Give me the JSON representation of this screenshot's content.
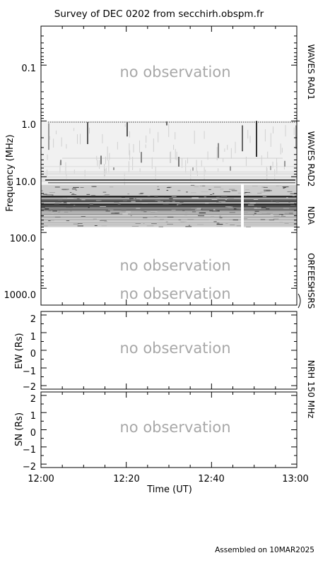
{
  "chart_data": {
    "type": "heatmap",
    "title": "Survey of  DEC 0202 from secchirh.obspm.fr",
    "xlabel": "Time (UT)",
    "x_ticks": [
      "12:00",
      "12:20",
      "12:40",
      "13:00"
    ],
    "no_observation_label": "no observation",
    "footer": "Assembled on 10MAR2025",
    "spectrogram": {
      "ylabel": "Frequency (MHz)",
      "y_scale": "log",
      "y_inverted": true,
      "ylim": [
        0.02,
        2000
      ],
      "y_ticks": [
        "0.1",
        "1.0",
        "10.0",
        "100.0",
        "1000.0"
      ],
      "bands": [
        {
          "name": "WAVES RAD1",
          "range_mhz": [
            0.02,
            1.0
          ],
          "observed": false
        },
        {
          "name": "WAVES RAD2",
          "range_mhz": [
            1.0,
            14.0
          ],
          "observed": true
        },
        {
          "name": "NDA",
          "range_mhz": [
            14.0,
            80.0
          ],
          "observed": true
        },
        {
          "name": "ORFEES",
          "range_mhz": [
            80.0,
            1000.0
          ],
          "observed": false
        },
        {
          "name": "HSRS",
          "range_mhz": [
            1000.0,
            2000.0
          ],
          "observed": false
        }
      ]
    },
    "nrh": {
      "label": "NRH 150 MHz",
      "panels": [
        {
          "ylabel": "EW (Rs)",
          "ylim": [
            -2.2,
            2.2
          ],
          "y_ticks": [
            "2",
            "1",
            "0",
            "−1",
            "−2"
          ],
          "observed": false
        },
        {
          "ylabel": "SN (Rs)",
          "ylim": [
            -2.2,
            2.2
          ],
          "y_ticks": [
            "2",
            "1",
            "0",
            "−1",
            "−2"
          ],
          "observed": false
        }
      ]
    }
  }
}
